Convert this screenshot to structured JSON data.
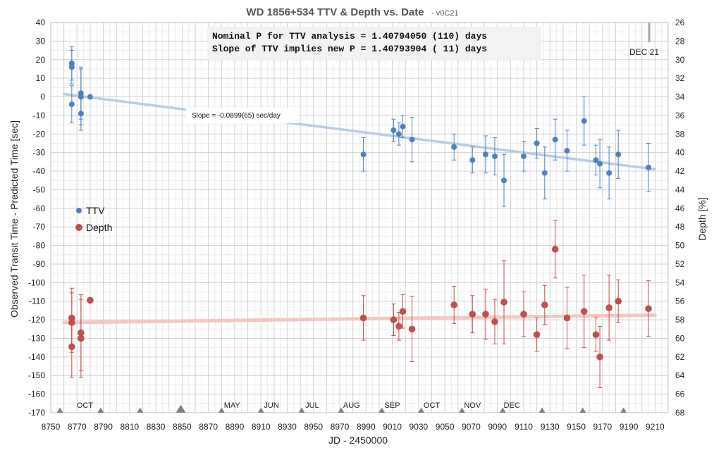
{
  "chart_data": {
    "type": "scatter",
    "title": "WD 1856+534 TTV & Depth vs. Date",
    "subtitle": "- v0C21",
    "xlabel": "JD - 2450000",
    "ylabel": "Observed Transit Time - Predicted Time [sec]",
    "y2label": "Depth [%]",
    "xlim": [
      8750,
      9220
    ],
    "ylim": [
      -170,
      40
    ],
    "y2lim": [
      68,
      26
    ],
    "x_ticks": [
      8750,
      8770,
      8790,
      8810,
      8830,
      8850,
      8870,
      8890,
      8910,
      8930,
      8950,
      8970,
      8990,
      9010,
      9030,
      9050,
      9070,
      9090,
      9110,
      9130,
      9150,
      9170,
      9190,
      9210
    ],
    "y_ticks": [
      40,
      30,
      20,
      10,
      0,
      -10,
      -20,
      -30,
      -40,
      -50,
      -60,
      -70,
      -80,
      -90,
      -100,
      -110,
      -120,
      -130,
      -140,
      -150,
      -160,
      -170
    ],
    "y2_ticks": [
      26,
      28,
      30,
      32,
      34,
      36,
      38,
      40,
      42,
      44,
      46,
      48,
      50,
      52,
      54,
      56,
      58,
      60,
      62,
      64,
      66,
      68
    ],
    "grid": true,
    "legend_placement": "left-middle",
    "annotations": {
      "line1": "Nominal P for TTV analysis = 1.40794050 (110) days",
      "line2": "Slope of TTV implies new P = 1.40793904 ( 11) days",
      "slope": "Slope = -0.0899(65) sec/day",
      "marker": "DEC 21"
    },
    "months": [
      {
        "label": "OCT",
        "x": 8776
      },
      {
        "label": "MAY",
        "x": 8888
      },
      {
        "label": "JUN",
        "x": 8918
      },
      {
        "label": "JUL",
        "x": 8949
      },
      {
        "label": "AUG",
        "x": 8979
      },
      {
        "label": "SEP",
        "x": 9010
      },
      {
        "label": "OCT",
        "x": 9040
      },
      {
        "label": "NOV",
        "x": 9071
      },
      {
        "label": "DEC",
        "x": 9101
      }
    ],
    "triangles": [
      8757,
      8788,
      8818,
      8849,
      8880,
      8910,
      8941,
      8971,
      9002,
      9032,
      9063,
      9094,
      9124,
      9155,
      9186
    ],
    "colors": {
      "ttv": "#4f81bd",
      "depth": "#c0504d",
      "ttv_fit": "#b8cce4",
      "depth_fit": "#f4c7c3"
    },
    "series": [
      {
        "name": "TTV",
        "axis": "left",
        "points": [
          {
            "x": 8766,
            "y": 18,
            "err": 9
          },
          {
            "x": 8766,
            "y": 16,
            "err": 9
          },
          {
            "x": 8766,
            "y": -4,
            "err": 10
          },
          {
            "x": 8773,
            "y": 2,
            "err": 14
          },
          {
            "x": 8773,
            "y": 0,
            "err": 15
          },
          {
            "x": 8773,
            "y": -9,
            "err": 9
          },
          {
            "x": 8780,
            "y": 0,
            "err": 0
          },
          {
            "x": 8988,
            "y": -31,
            "err": 9
          },
          {
            "x": 9011,
            "y": -18,
            "err": 6
          },
          {
            "x": 9015,
            "y": -20,
            "err": 6
          },
          {
            "x": 9018,
            "y": -16,
            "err": 6
          },
          {
            "x": 9025,
            "y": -23,
            "err": 12
          },
          {
            "x": 9057,
            "y": -27,
            "err": 7
          },
          {
            "x": 9071,
            "y": -34,
            "err": 7
          },
          {
            "x": 9081,
            "y": -31,
            "err": 10
          },
          {
            "x": 9088,
            "y": -32,
            "err": 10
          },
          {
            "x": 9095,
            "y": -45,
            "err": 14
          },
          {
            "x": 9110,
            "y": -32,
            "err": 8
          },
          {
            "x": 9120,
            "y": -25,
            "err": 8
          },
          {
            "x": 9126,
            "y": -41,
            "err": 14
          },
          {
            "x": 9134,
            "y": -23,
            "err": 11
          },
          {
            "x": 9143,
            "y": -29,
            "err": 11
          },
          {
            "x": 9156,
            "y": -13,
            "err": 13
          },
          {
            "x": 9165,
            "y": -34,
            "err": 8
          },
          {
            "x": 9168,
            "y": -36,
            "err": 13
          },
          {
            "x": 9175,
            "y": -41,
            "err": 14
          },
          {
            "x": 9182,
            "y": -31,
            "err": 13
          },
          {
            "x": 9205,
            "y": -38,
            "err": 13
          }
        ]
      },
      {
        "name": "Depth",
        "axis": "right",
        "points": [
          {
            "x": 8766,
            "y": 57.8,
            "err": 3.2
          },
          {
            "x": 8766,
            "y": 58.3,
            "err": 3.2
          },
          {
            "x": 8766,
            "y": 60.9,
            "err": 3.3
          },
          {
            "x": 8773,
            "y": 59.4,
            "err": 4.1
          },
          {
            "x": 8773,
            "y": 60.0,
            "err": 4.2
          },
          {
            "x": 8780,
            "y": 55.9,
            "err": 0
          },
          {
            "x": 8988,
            "y": 57.8,
            "err": 2.4
          },
          {
            "x": 9011,
            "y": 58.0,
            "err": 1.7
          },
          {
            "x": 9015,
            "y": 58.7,
            "err": 1.5
          },
          {
            "x": 9018,
            "y": 57.1,
            "err": 1.8
          },
          {
            "x": 9025,
            "y": 59.0,
            "err": 3.5
          },
          {
            "x": 9057,
            "y": 56.4,
            "err": 2.0
          },
          {
            "x": 9071,
            "y": 57.4,
            "err": 2.0
          },
          {
            "x": 9081,
            "y": 57.4,
            "err": 2.7
          },
          {
            "x": 9088,
            "y": 58.2,
            "err": 2.4
          },
          {
            "x": 9095,
            "y": 56.1,
            "err": 4.5
          },
          {
            "x": 9110,
            "y": 57.4,
            "err": 2.4
          },
          {
            "x": 9120,
            "y": 59.6,
            "err": 1.8
          },
          {
            "x": 9126,
            "y": 56.4,
            "err": 2.1
          },
          {
            "x": 9134,
            "y": 50.4,
            "err": 3.1
          },
          {
            "x": 9143,
            "y": 57.8,
            "err": 3.3
          },
          {
            "x": 9156,
            "y": 57.1,
            "err": 3.9
          },
          {
            "x": 9165,
            "y": 59.6,
            "err": 1.8
          },
          {
            "x": 9168,
            "y": 62.0,
            "err": 3.3
          },
          {
            "x": 9175,
            "y": 56.7,
            "err": 3.5
          },
          {
            "x": 9182,
            "y": 56.0,
            "err": 2.3
          },
          {
            "x": 9205,
            "y": 56.8,
            "err": 3.0
          }
        ]
      }
    ],
    "fits": [
      {
        "series": "TTV",
        "x": [
          8760,
          9210
        ],
        "y": [
          1.5,
          -39
        ]
      },
      {
        "series": "Depth",
        "x": [
          8760,
          9210
        ],
        "y": [
          58.3,
          57.5
        ]
      }
    ]
  }
}
